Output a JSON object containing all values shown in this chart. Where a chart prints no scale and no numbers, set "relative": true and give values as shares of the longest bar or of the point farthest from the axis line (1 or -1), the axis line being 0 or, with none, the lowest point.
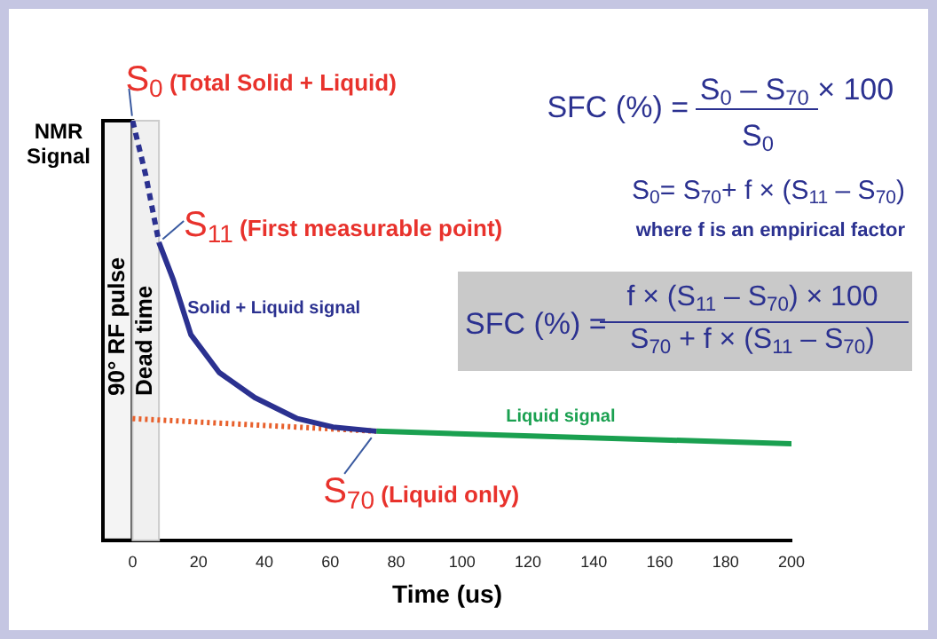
{
  "chart_data": {
    "type": "line",
    "relative": true,
    "xlabel": "Time (us)",
    "ylabel": "NMR Signal",
    "xlim": [
      -9,
      200
    ],
    "xticks": [
      0,
      20,
      40,
      60,
      80,
      100,
      120,
      140,
      160,
      180,
      200
    ],
    "grid": false,
    "legend": false,
    "marker": "none",
    "series": [
      {
        "color": "#2b3190",
        "line_style": "dashed",
        "x": [
          0,
          4,
          8
        ],
        "values": [
          1.0,
          0.87,
          0.71
        ]
      },
      {
        "name": "Solid + Liquid signal",
        "color": "#2b3190",
        "x": [
          8,
          12.4,
          17.7,
          26.3,
          37.1,
          50,
          60.8,
          74
        ],
        "values": [
          0.71,
          0.62,
          0.49,
          0.4,
          0.34,
          0.29,
          0.27,
          0.26
        ]
      },
      {
        "name": "Liquid signal",
        "color": "#1aa050",
        "x": [
          74,
          200
        ],
        "values": [
          0.26,
          0.23
        ]
      },
      {
        "color": "#e8602c",
        "line_style": "dotted",
        "x": [
          0,
          74
        ],
        "values": [
          0.29,
          0.26
        ]
      }
    ],
    "bands": [
      {
        "axis": "x",
        "from": -9,
        "to": 0,
        "label": "90° RF pulse",
        "color": "#f4f4f4"
      },
      {
        "axis": "x",
        "from": 0,
        "to": 8,
        "label": "Dead time",
        "color": "#f0f0f0"
      }
    ],
    "annotations": [
      {
        "text": "S$_{0}$ (Total Solid + Liquid)",
        "x": 0,
        "y": 1
      },
      {
        "text": "S$_{11}$ (First measurable point)",
        "x": 8,
        "y": 0.71
      },
      {
        "text": "S$_{70}$ (Liquid only)",
        "x": 74,
        "y": 0.26
      },
      "SFC (%) =",
      "S$_{0}$ – S$_{70}$ × 100",
      "S$_{0}$",
      "S$_{0}$= S$_{70}$+ f × (S$_{11}$ – S$_{70}$)",
      "where f is an empirical factor",
      "SFC (%) =",
      "f × (S$_{11}$ – S$_{70}$) × 100",
      "S$_{70}$ + f × (S$_{11}$ – S$_{70}$)"
    ]
  }
}
